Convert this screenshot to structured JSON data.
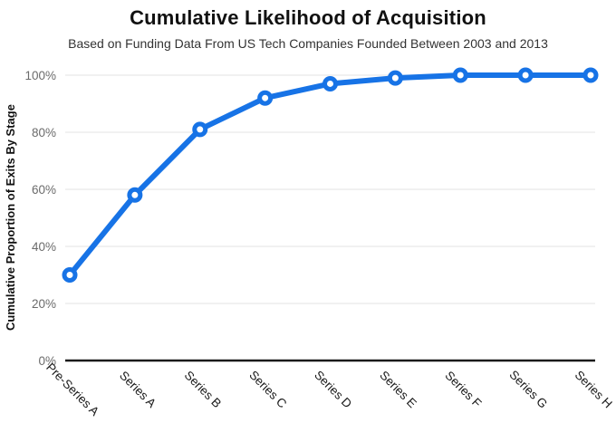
{
  "chart_data": {
    "type": "line",
    "title": "Cumulative Likelihood of Acquisition",
    "subtitle": "Based on Funding Data From US Tech Companies Founded Between 2003 and 2013",
    "ylabel": "Cumulative Proportion of Exits By Stage",
    "xlabel": "",
    "categories": [
      "Pre-Series A",
      "Series A",
      "Series B",
      "Series C",
      "Series D",
      "Series E",
      "Series F",
      "Series G",
      "Series H"
    ],
    "values": [
      30,
      58,
      81,
      92,
      97,
      99,
      100,
      100,
      100
    ],
    "ylim": [
      0,
      100
    ],
    "ytick_values": [
      0,
      20,
      40,
      60,
      80,
      100
    ],
    "ytick_labels": [
      "0%",
      "20%",
      "40%",
      "60%",
      "80%",
      "100%"
    ],
    "grid": true,
    "legend": "none",
    "marker": "open-circle",
    "colors": {
      "line": "#1773e6",
      "marker_fill": "#ffffff",
      "grid": "#e3e3e3",
      "axis": "#1a1a1a",
      "ytick_text": "#6b6b6b",
      "xtick_text": "#1a1a1a",
      "title_text": "#111111",
      "subtitle_text": "#333333",
      "background": "#ffffff"
    }
  }
}
